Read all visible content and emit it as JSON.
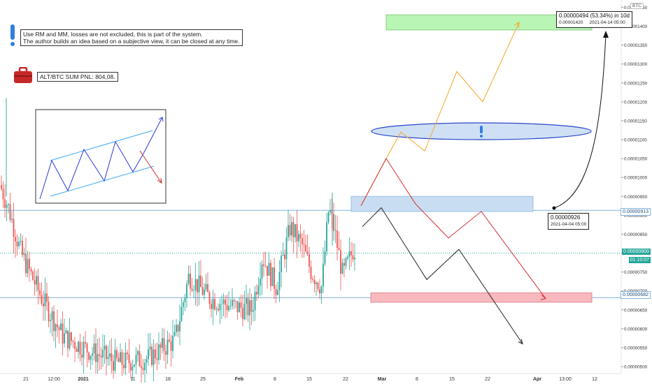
{
  "notes": {
    "system_line1": "Use RM and MM, losses are not excluded, this is part of the system.",
    "system_line2": "The author builds an idea based on a subjective view, it can be closed at any time.",
    "pnl": "ALT/BTC SUM PNL: 804,08."
  },
  "icons": {
    "exclamation": "exclamation-icon",
    "briefcase": "briefcase-icon"
  },
  "currency_badge": "BTC",
  "price_tags": {
    "current": "0.00000800",
    "countdown": "01:10:07",
    "upper_level": "0.00000913",
    "lower_level": "0.00000682"
  },
  "measure": {
    "main": "0.00000494 (53.34%) in 10d",
    "price": "0.00001420",
    "date": "2021-04-14  05:00"
  },
  "start_point": {
    "price": "0.00000926",
    "date": "2021-04-04 05:00"
  },
  "colors": {
    "up": "#26a69a",
    "down": "#ef5350",
    "level": "#7fb3e0",
    "target_green": "#b9f5b4",
    "target_red": "#f7b8be",
    "zone_blue": "#c9ddf2",
    "orange": "#f5a623",
    "red_path": "#d32f2f",
    "black_path": "#222222"
  },
  "chart_data": {
    "type": "candlestick",
    "pair": "ALT/BTC",
    "y_tick_labels": [
      "0.00000500",
      "0.00000550",
      "0.00000600",
      "0.00000650",
      "0.00000700",
      "0.00000750",
      "0.00000800",
      "0.00000850",
      "0.00000900",
      "0.00000950",
      "0.00001000",
      "0.00001050",
      "0.00001100",
      "0.00001150",
      "0.00001200",
      "0.00001250",
      "0.00001300",
      "0.00001350",
      "0.00001400",
      "0.00001450"
    ],
    "y_range": [
      5e-06,
      1.46e-05
    ],
    "x_tick_labels": [
      "21",
      "12:00",
      "2021",
      "11",
      "18",
      "25",
      "Feb",
      "8",
      "15",
      "22",
      "Mar",
      "8",
      "15",
      "22",
      "Apr",
      "13:00",
      "12"
    ],
    "horizontal_levels": [
      9.13e-06,
      6.82e-06
    ],
    "current_price": 8e-06,
    "target_zone": [
      1.39e-05,
      1.43e-05
    ],
    "stop_zone": [
      6.7e-06,
      6.95e-06
    ],
    "entry_zone": [
      9.1e-06,
      9.5e-06
    ],
    "scenarios": {
      "orange": [
        9.25e-06,
        1.05e-05,
        1.12e-05,
        1.07e-05,
        1.28e-05,
        1.2e-05,
        1.41e-05
      ],
      "red": [
        9.25e-06,
        1.05e-05,
        9.3e-06,
        8.4e-06,
        9.1e-06,
        6.8e-06
      ],
      "black": [
        8.7e-06,
        9.2e-06,
        7.3e-06,
        8.1e-06,
        5.6e-06
      ]
    }
  }
}
